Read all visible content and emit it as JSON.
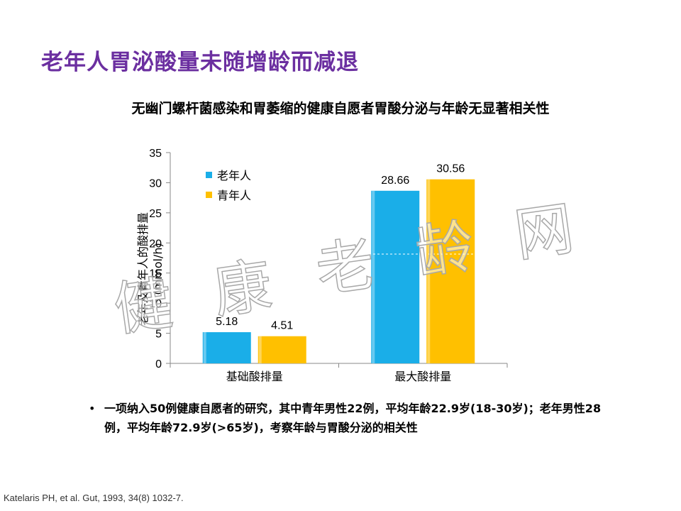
{
  "slide": {
    "title": "老年人胃泌酸量未随增龄而减退",
    "subtitle": "无幽门螺杆菌感染和胃萎缩的健康自愿者胃酸分泌与年龄无显著相关性",
    "bullet": "一项纳入50例健康自愿者的研究，其中青年男性22例，平均年龄22.9岁(18-30岁)；老年男性28例，平均年龄72.9岁(>65岁)，考察年龄与胃酸分泌的相关性",
    "citation": "Katelaris PH, et al.  Gut, 1993, 34(8) 1032-7.",
    "watermark": [
      "健",
      "康",
      "老",
      "龄",
      "网"
    ]
  },
  "colors": {
    "title": "#6b2fa0",
    "series_old": "#1aaee8",
    "series_young": "#ffc000"
  },
  "chart_data": {
    "type": "bar",
    "categories": [
      "基础酸排量",
      "最大酸排量"
    ],
    "series": [
      {
        "name": "老年人",
        "values": [
          5.18,
          28.66
        ],
        "labels": [
          "5.18",
          "28.66"
        ]
      },
      {
        "name": "青年人",
        "values": [
          4.51,
          30.56
        ],
        "labels": [
          "4.51",
          "30.56"
        ]
      }
    ],
    "ylabel_lines": [
      "老年及青年人的酸排量",
      "(mmol/h)"
    ],
    "xlabel": "",
    "ylim": [
      0,
      35
    ],
    "yticks": [
      0,
      5,
      10,
      15,
      20,
      25,
      30,
      35
    ],
    "legend_position": "top-left",
    "grid": false
  }
}
